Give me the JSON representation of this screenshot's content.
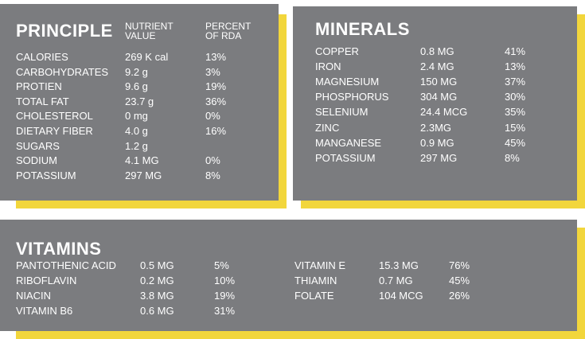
{
  "principle": {
    "title": "PRINCIPLE",
    "col_value": "NUTRIENT VALUE",
    "col_rda": "PERCENT OF RDA",
    "rows": [
      {
        "name": "CALORIES",
        "value": "269 K cal",
        "rda": "13%"
      },
      {
        "name": "CARBOHYDRATES",
        "value": "9.2 g",
        "rda": "3%"
      },
      {
        "name": "PROTIEN",
        "value": "9.6 g",
        "rda": "19%"
      },
      {
        "name": "TOTAL FAT",
        "value": "23.7 g",
        "rda": "36%"
      },
      {
        "name": "CHOLESTEROL",
        "value": "0 mg",
        "rda": "0%"
      },
      {
        "name": "DIETARY FIBER",
        "value": "4.0 g",
        "rda": "16%"
      },
      {
        "name": "SUGARS",
        "value": "1.2 g",
        "rda": ""
      },
      {
        "name": "SODIUM",
        "value": "4.1 MG",
        "rda": "0%"
      },
      {
        "name": "POTASSIUM",
        "value": "297 MG",
        "rda": "8%"
      }
    ]
  },
  "minerals": {
    "title": "MINERALS",
    "rows": [
      {
        "name": "COPPER",
        "value": "0.8 MG",
        "rda": "41%"
      },
      {
        "name": "IRON",
        "value": "2.4 MG",
        "rda": "13%"
      },
      {
        "name": "MAGNESIUM",
        "value": "150 MG",
        "rda": "37%"
      },
      {
        "name": "PHOSPHORUS",
        "value": "304 MG",
        "rda": "30%"
      },
      {
        "name": "SELENIUM",
        "value": "24.4 MCG",
        "rda": "35%"
      },
      {
        "name": "ZINC",
        "value": "2.3MG",
        "rda": "15%"
      },
      {
        "name": "MANGANESE",
        "value": "0.9 MG",
        "rda": "45%"
      },
      {
        "name": "POTASSIUM",
        "value": "297 MG",
        "rda": "8%"
      }
    ]
  },
  "vitamins": {
    "title": "VITAMINS",
    "left": [
      {
        "name": "PANTOTHENIC ACID",
        "value": "0.5 MG",
        "rda": "5%"
      },
      {
        "name": "RIBOFLAVIN",
        "value": "0.2 MG",
        "rda": "10%"
      },
      {
        "name": "NIACIN",
        "value": "3.8 MG",
        "rda": "19%"
      },
      {
        "name": "VITAMIN B6",
        "value": "0.6 MG",
        "rda": "31%"
      }
    ],
    "right": [
      {
        "name": "VITAMIN E",
        "value": "15.3 MG",
        "rda": "76%"
      },
      {
        "name": "THIAMIN",
        "value": "0.7 MG",
        "rda": "45%"
      },
      {
        "name": "FOLATE",
        "value": "104 MCG",
        "rda": "26%"
      }
    ]
  },
  "colors": {
    "panel": "#7b7c7f",
    "accent": "#f2d63c",
    "text": "#ffffff"
  }
}
